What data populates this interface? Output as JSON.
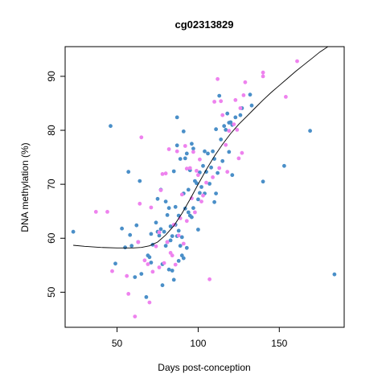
{
  "chart_data": {
    "type": "scatter",
    "title": "cg02313829",
    "xlabel": "Days post-conception",
    "ylabel": "DNA methylation (%)",
    "xlim": [
      18,
      190
    ],
    "ylim": [
      43.5,
      95.5
    ],
    "xticks": [
      50,
      100,
      150
    ],
    "yticks": [
      50,
      60,
      70,
      80,
      90
    ],
    "grid": false,
    "legend": "none",
    "series": [
      {
        "color": "#4a8fc8",
        "points": [
          [
            23,
            61.2
          ],
          [
            46,
            80.8
          ],
          [
            49,
            55.3
          ],
          [
            53,
            61.8
          ],
          [
            55,
            58.3
          ],
          [
            57,
            72.3
          ],
          [
            58,
            60.6
          ],
          [
            59,
            58.6
          ],
          [
            61,
            52.8
          ],
          [
            62,
            62.4
          ],
          [
            63,
            59.3
          ],
          [
            64,
            70.6
          ],
          [
            65,
            53.4
          ],
          [
            68,
            49.1
          ],
          [
            69,
            56.8
          ],
          [
            70,
            56.5
          ],
          [
            71,
            60.8
          ],
          [
            71,
            55.5
          ],
          [
            72,
            58.8
          ],
          [
            74,
            62.9
          ],
          [
            75,
            67.3
          ],
          [
            75,
            61.2
          ],
          [
            76,
            60.5
          ],
          [
            77,
            61.7
          ],
          [
            77,
            69.0
          ],
          [
            78,
            55.2
          ],
          [
            78,
            51.3
          ],
          [
            79,
            61.2
          ],
          [
            80,
            58.6
          ],
          [
            80,
            66.8
          ],
          [
            81,
            64.3
          ],
          [
            81,
            59.3
          ],
          [
            82,
            65.6
          ],
          [
            82,
            54.2
          ],
          [
            83,
            62.2
          ],
          [
            83,
            59.6
          ],
          [
            84,
            54.0
          ],
          [
            84,
            60.4
          ],
          [
            85,
            52.3
          ],
          [
            85,
            72.4
          ],
          [
            86,
            65.8
          ],
          [
            86,
            62.5
          ],
          [
            87,
            60.4
          ],
          [
            87,
            77.2
          ],
          [
            87,
            82.4
          ],
          [
            88,
            64.2
          ],
          [
            88,
            55.8
          ],
          [
            88,
            61.4
          ],
          [
            89,
            58.6
          ],
          [
            89,
            74.7
          ],
          [
            90,
            56.8
          ],
          [
            90,
            60.2
          ],
          [
            91,
            56.3
          ],
          [
            91,
            68.3
          ],
          [
            91,
            79.8
          ],
          [
            92,
            74.8
          ],
          [
            92,
            65.5
          ],
          [
            93,
            58.2
          ],
          [
            93,
            75.7
          ],
          [
            94,
            69.0
          ],
          [
            94,
            64.8
          ],
          [
            95,
            64.2
          ],
          [
            95,
            72.6
          ],
          [
            96,
            77.5
          ],
          [
            96,
            63.9
          ],
          [
            97,
            76.6
          ],
          [
            97,
            65.6
          ],
          [
            98,
            70.6
          ],
          [
            99,
            70.2
          ],
          [
            100,
            67.2
          ],
          [
            100,
            61.6
          ],
          [
            101,
            72.2
          ],
          [
            101,
            68.4
          ],
          [
            102,
            69.5
          ],
          [
            103,
            73.4
          ],
          [
            104,
            76.1
          ],
          [
            104,
            68.3
          ],
          [
            105,
            72.3
          ],
          [
            106,
            75.7
          ],
          [
            107,
            70.1
          ],
          [
            108,
            73.1
          ],
          [
            109,
            76.1
          ],
          [
            110,
            74.7
          ],
          [
            110,
            66.7
          ],
          [
            111,
            68.3
          ],
          [
            111,
            80.2
          ],
          [
            112,
            72.1
          ],
          [
            113,
            86.4
          ],
          [
            114,
            78.3
          ],
          [
            115,
            74.3
          ],
          [
            116,
            80.8
          ],
          [
            117,
            80.1
          ],
          [
            118,
            83.1
          ],
          [
            119,
            81.4
          ],
          [
            119,
            76.0
          ],
          [
            120,
            81.5
          ],
          [
            121,
            81.0
          ],
          [
            121,
            71.7
          ],
          [
            123,
            82.4
          ],
          [
            126,
            82.8
          ],
          [
            127,
            84.1
          ],
          [
            132,
            86.6
          ],
          [
            133,
            84.6
          ],
          [
            140,
            70.5
          ],
          [
            153,
            73.4
          ],
          [
            169,
            79.9
          ],
          [
            184,
            53.3
          ]
        ]
      },
      {
        "color": "#ee82ee",
        "points": [
          [
            37,
            64.9
          ],
          [
            44,
            64.9
          ],
          [
            47,
            53.9
          ],
          [
            56,
            53.0
          ],
          [
            57,
            49.7
          ],
          [
            61,
            45.5
          ],
          [
            63,
            59.3
          ],
          [
            64,
            66.4
          ],
          [
            65,
            78.7
          ],
          [
            67,
            55.9
          ],
          [
            69,
            55.2
          ],
          [
            70,
            48.1
          ],
          [
            71,
            65.7
          ],
          [
            72,
            53.8
          ],
          [
            74,
            58.5
          ],
          [
            76,
            61.1
          ],
          [
            76,
            54.6
          ],
          [
            77,
            68.9
          ],
          [
            78,
            71.9
          ],
          [
            79,
            55.4
          ],
          [
            80,
            72.0
          ],
          [
            81,
            59.3
          ],
          [
            82,
            76.5
          ],
          [
            83,
            57.3
          ],
          [
            84,
            56.8
          ],
          [
            85,
            62.5
          ],
          [
            86,
            55.1
          ],
          [
            87,
            76.1
          ],
          [
            88,
            60.5
          ],
          [
            89,
            63.7
          ],
          [
            90,
            68.1
          ],
          [
            91,
            59.0
          ],
          [
            92,
            77.1
          ],
          [
            93,
            72.9
          ],
          [
            93,
            63.2
          ],
          [
            95,
            73.0
          ],
          [
            96,
            67.4
          ],
          [
            97,
            76.0
          ],
          [
            98,
            64.8
          ],
          [
            99,
            72.5
          ],
          [
            100,
            71.7
          ],
          [
            101,
            74.6
          ],
          [
            102,
            66.8
          ],
          [
            103,
            67.9
          ],
          [
            105,
            70.3
          ],
          [
            107,
            52.4
          ],
          [
            109,
            71.3
          ],
          [
            110,
            85.3
          ],
          [
            112,
            89.5
          ],
          [
            113,
            73.0
          ],
          [
            114,
            85.4
          ],
          [
            115,
            82.8
          ],
          [
            117,
            77.3
          ],
          [
            118,
            72.3
          ],
          [
            119,
            79.9
          ],
          [
            122,
            81.1
          ],
          [
            123,
            85.6
          ],
          [
            124,
            80.1
          ],
          [
            125,
            74.8
          ],
          [
            126,
            84.1
          ],
          [
            127,
            75.8
          ],
          [
            128,
            86.5
          ],
          [
            129,
            88.9
          ],
          [
            140,
            90.0
          ],
          [
            140,
            90.7
          ],
          [
            154,
            86.2
          ],
          [
            161,
            92.8
          ]
        ]
      }
    ],
    "fit_line": {
      "color": "#000000",
      "points": [
        [
          23,
          58.7
        ],
        [
          30,
          58.5
        ],
        [
          40,
          58.3
        ],
        [
          50,
          58.2
        ],
        [
          60,
          58.2
        ],
        [
          65,
          58.3
        ],
        [
          70,
          58.6
        ],
        [
          75,
          59.3
        ],
        [
          80,
          60.6
        ],
        [
          85,
          62.3
        ],
        [
          90,
          64.6
        ],
        [
          95,
          67.2
        ],
        [
          100,
          70.0
        ],
        [
          105,
          72.7
        ],
        [
          110,
          75.2
        ],
        [
          115,
          77.4
        ],
        [
          120,
          79.4
        ],
        [
          125,
          81.1
        ],
        [
          130,
          82.6
        ],
        [
          135,
          84.1
        ],
        [
          140,
          85.6
        ],
        [
          145,
          87.0
        ],
        [
          150,
          88.3
        ],
        [
          155,
          89.6
        ],
        [
          160,
          90.9
        ],
        [
          165,
          92.1
        ],
        [
          170,
          93.3
        ],
        [
          175,
          94.5
        ],
        [
          180,
          95.5
        ]
      ]
    }
  }
}
